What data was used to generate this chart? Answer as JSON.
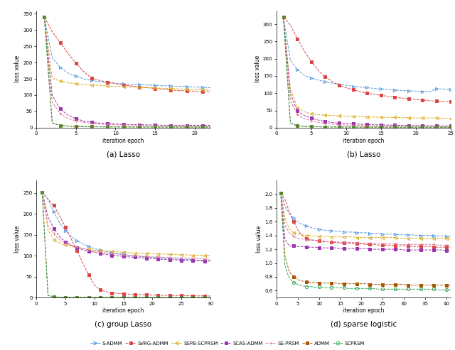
{
  "subplot_titles": [
    "(a) Lasso",
    "(b) Lasso",
    "(c) group Lasso",
    "(d) sparse logistic"
  ],
  "ylabel": "loss value",
  "xlabel": "iteration epoch",
  "methods": [
    "S-ADMM",
    "SVRG-ADMM",
    "SSPB-SCPRSM",
    "SCAS-ADMM",
    "SS-PRSM",
    "ADMM",
    "SCPRSM"
  ],
  "colors": [
    "#5599dd",
    "#dd4444",
    "#ddaa22",
    "#9933aa",
    "#dd7799",
    "#aa5500",
    "#33aa55"
  ],
  "markers": [
    ">",
    "s",
    "<",
    "s",
    "+",
    "s",
    "o"
  ],
  "plot_a": {
    "xlim": [
      0,
      22
    ],
    "ylim": [
      0,
      360
    ],
    "yticks": [
      0,
      50,
      100,
      150,
      200,
      250,
      300,
      350
    ],
    "xticks": [
      0,
      5,
      10,
      15,
      20
    ],
    "data": [
      [
        340,
        215,
        185,
        168,
        158,
        150,
        145,
        141,
        138,
        136,
        134,
        133,
        132,
        131,
        130,
        129,
        128,
        127,
        126,
        125,
        124,
        123
      ],
      [
        340,
        295,
        262,
        228,
        198,
        172,
        152,
        145,
        140,
        136,
        131,
        128,
        125,
        123,
        120,
        118,
        116,
        114,
        113,
        112,
        111,
        110
      ],
      [
        340,
        152,
        143,
        138,
        135,
        133,
        131,
        130,
        128,
        127,
        126,
        125,
        124,
        123,
        122,
        121,
        120,
        119,
        118,
        117,
        116,
        115
      ],
      [
        340,
        100,
        58,
        38,
        28,
        20,
        16,
        14,
        12,
        11,
        10,
        9.5,
        9,
        8.5,
        8,
        7.5,
        7,
        7,
        7,
        7,
        7,
        7
      ],
      [
        340,
        78,
        43,
        28,
        21,
        16,
        13,
        11,
        10,
        9,
        8.5,
        8,
        7.5,
        7,
        6.5,
        6,
        5.8,
        5.5,
        5.3,
        5.1,
        5,
        5
      ],
      [
        340,
        14,
        7,
        5,
        4,
        3.5,
        3,
        2.8,
        2.6,
        2.5,
        2.4,
        2.3,
        2.2,
        2.1,
        2.1,
        2,
        2,
        1.9,
        1.9,
        1.8,
        1.8,
        1.8
      ],
      [
        340,
        14,
        6.5,
        4.5,
        3.8,
        3.2,
        2.8,
        2.5,
        2.3,
        2.2,
        2.1,
        2,
        2,
        1.9,
        1.9,
        1.8,
        1.8,
        1.7,
        1.7,
        1.6,
        1.6,
        1.6
      ]
    ]
  },
  "plot_b": {
    "xlim": [
      0,
      25
    ],
    "ylim": [
      0,
      340
    ],
    "yticks": [
      0,
      50,
      100,
      150,
      200,
      250,
      300
    ],
    "xticks": [
      0,
      5,
      10,
      15,
      20,
      25
    ],
    "data": [
      [
        320,
        195,
        168,
        152,
        144,
        138,
        133,
        129,
        126,
        123,
        120,
        118,
        116,
        114,
        112,
        111,
        109,
        108,
        107,
        106,
        105,
        104,
        113,
        112,
        111,
        110
      ],
      [
        320,
        298,
        258,
        222,
        192,
        166,
        148,
        134,
        123,
        116,
        110,
        105,
        100,
        97,
        94,
        91,
        88,
        86,
        84,
        82,
        80,
        78,
        77,
        76,
        75,
        74
      ],
      [
        320,
        112,
        58,
        46,
        40,
        38,
        36,
        35,
        34,
        33,
        32,
        32,
        31,
        31,
        30,
        30,
        30,
        29,
        29,
        28,
        28,
        28,
        28,
        27,
        27,
        27
      ],
      [
        320,
        98,
        48,
        35,
        28,
        22,
        18,
        15,
        13,
        12,
        11,
        10,
        9,
        8.5,
        8,
        7.5,
        7,
        6.5,
        6.2,
        6,
        5.8,
        5.5,
        5.3,
        5.1,
        5,
        4.8
      ],
      [
        320,
        78,
        38,
        26,
        20,
        15,
        12,
        10,
        8.5,
        7.5,
        7,
        6.5,
        6,
        5.5,
        5.2,
        5,
        4.8,
        4.6,
        4.4,
        4.2,
        4,
        3.9,
        3.8,
        3.7,
        3.6,
        3.5
      ],
      [
        320,
        13,
        5.5,
        3.8,
        3.2,
        2.7,
        2.4,
        2.2,
        2.1,
        2,
        1.9,
        1.8,
        1.8,
        1.7,
        1.7,
        1.6,
        1.6,
        1.5,
        1.5,
        1.5,
        1.4,
        1.4,
        1.4,
        1.3,
        1.3,
        1.3
      ],
      [
        320,
        13,
        5.5,
        3.5,
        3,
        2.5,
        2.2,
        2,
        1.9,
        1.8,
        1.7,
        1.6,
        1.6,
        1.5,
        1.5,
        1.4,
        1.4,
        1.3,
        1.3,
        1.3,
        1.2,
        1.2,
        1.2,
        1.1,
        1.1,
        1.1
      ]
    ]
  },
  "plot_c": {
    "xlim": [
      0,
      30
    ],
    "ylim": [
      0,
      280
    ],
    "yticks": [
      0,
      50,
      100,
      150,
      200,
      250
    ],
    "xticks": [
      0,
      5,
      10,
      15,
      20,
      25,
      30
    ],
    "data": [
      [
        252,
        235,
        205,
        178,
        160,
        146,
        136,
        128,
        122,
        117,
        113,
        110,
        107,
        105,
        103,
        101,
        99,
        98,
        97,
        96,
        95,
        94,
        93,
        92,
        91,
        91,
        90,
        89,
        89,
        88,
        88
      ],
      [
        252,
        235,
        220,
        195,
        168,
        140,
        112,
        82,
        55,
        30,
        18,
        14,
        11,
        10,
        9,
        8,
        7.5,
        7,
        6.5,
        6,
        5.5,
        5.2,
        5,
        4.8,
        4.6,
        4.4,
        4.2,
        4,
        3.8,
        3.7,
        3.5
      ],
      [
        252,
        162,
        138,
        130,
        125,
        122,
        119,
        117,
        115,
        113,
        112,
        111,
        110,
        109,
        108,
        107,
        106,
        106,
        105,
        105,
        104,
        104,
        103,
        103,
        102,
        102,
        101,
        101,
        101,
        100,
        100
      ],
      [
        252,
        192,
        165,
        145,
        133,
        125,
        119,
        114,
        111,
        108,
        105,
        103,
        101,
        100,
        98,
        97,
        96,
        95,
        94,
        93,
        92,
        91,
        90,
        90,
        89,
        89,
        88,
        88,
        87,
        87,
        87
      ],
      [
        252,
        172,
        152,
        138,
        130,
        125,
        121,
        117,
        114,
        111,
        109,
        107,
        105,
        104,
        102,
        101,
        100,
        99,
        98,
        97,
        97,
        96,
        95,
        95,
        94,
        94,
        93,
        93,
        92,
        92,
        91
      ],
      [
        252,
        5,
        1.5,
        1,
        0.7,
        0.5,
        0.4,
        0.35,
        0.3,
        0.25,
        0.22,
        0.2,
        0.18,
        0.16,
        0.15,
        0.14,
        0.13,
        0.12,
        0.11,
        0.1,
        0.1,
        0.09,
        0.09,
        0.08,
        0.08,
        0.07,
        0.07,
        0.07,
        0.06,
        0.06,
        0.06
      ],
      [
        252,
        5,
        1.5,
        1,
        0.7,
        0.5,
        0.4,
        0.33,
        0.28,
        0.23,
        0.2,
        0.18,
        0.16,
        0.15,
        0.13,
        0.12,
        0.11,
        0.1,
        0.1,
        0.09,
        0.09,
        0.08,
        0.08,
        0.07,
        0.07,
        0.06,
        0.06,
        0.06,
        0.05,
        0.05,
        0.05
      ]
    ]
  },
  "plot_d": {
    "xlim": [
      0,
      41
    ],
    "ylim": [
      0.5,
      2.2
    ],
    "yticks": [
      0.6,
      0.8,
      1.0,
      1.2,
      1.4,
      1.6,
      1.8,
      2.0
    ],
    "xticks": [
      0,
      5,
      10,
      15,
      20,
      25,
      30,
      35,
      40
    ],
    "data": [
      [
        2.02,
        1.82,
        1.72,
        1.65,
        1.6,
        1.56,
        1.54,
        1.52,
        1.5,
        1.49,
        1.48,
        1.47,
        1.47,
        1.46,
        1.46,
        1.45,
        1.45,
        1.45,
        1.44,
        1.44,
        1.44,
        1.43,
        1.43,
        1.43,
        1.42,
        1.42,
        1.42,
        1.42,
        1.41,
        1.41,
        1.41,
        1.41,
        1.4,
        1.4,
        1.4,
        1.4,
        1.4,
        1.39,
        1.39,
        1.39,
        1.39
      ],
      [
        2.02,
        1.92,
        1.75,
        1.6,
        1.48,
        1.4,
        1.36,
        1.34,
        1.33,
        1.32,
        1.31,
        1.31,
        1.3,
        1.3,
        1.29,
        1.29,
        1.29,
        1.28,
        1.28,
        1.28,
        1.27,
        1.27,
        1.27,
        1.26,
        1.26,
        1.26,
        1.26,
        1.25,
        1.25,
        1.25,
        1.25,
        1.24,
        1.24,
        1.24,
        1.24,
        1.24,
        1.23,
        1.23,
        1.23,
        1.23,
        1.23
      ],
      [
        2.02,
        1.65,
        1.5,
        1.44,
        1.42,
        1.41,
        1.4,
        1.4,
        1.39,
        1.39,
        1.39,
        1.39,
        1.38,
        1.38,
        1.38,
        1.38,
        1.38,
        1.38,
        1.37,
        1.37,
        1.37,
        1.37,
        1.37,
        1.37,
        1.37,
        1.37,
        1.37,
        1.37,
        1.36,
        1.36,
        1.36,
        1.36,
        1.36,
        1.36,
        1.36,
        1.36,
        1.36,
        1.36,
        1.36,
        1.36,
        1.35
      ],
      [
        2.02,
        1.35,
        1.25,
        1.25,
        1.24,
        1.24,
        1.23,
        1.23,
        1.23,
        1.22,
        1.22,
        1.22,
        1.22,
        1.22,
        1.21,
        1.21,
        1.21,
        1.21,
        1.21,
        1.21,
        1.21,
        1.2,
        1.2,
        1.2,
        1.2,
        1.2,
        1.2,
        1.2,
        1.2,
        1.19,
        1.19,
        1.19,
        1.19,
        1.19,
        1.19,
        1.19,
        1.19,
        1.19,
        1.19,
        1.18,
        1.18
      ],
      [
        2.02,
        1.55,
        1.44,
        1.39,
        1.36,
        1.35,
        1.34,
        1.33,
        1.33,
        1.32,
        1.32,
        1.31,
        1.31,
        1.31,
        1.3,
        1.3,
        1.3,
        1.3,
        1.29,
        1.29,
        1.29,
        1.29,
        1.29,
        1.28,
        1.28,
        1.28,
        1.28,
        1.28,
        1.27,
        1.27,
        1.27,
        1.27,
        1.27,
        1.27,
        1.27,
        1.27,
        1.27,
        1.26,
        1.26,
        1.26,
        1.26
      ],
      [
        2.02,
        1.1,
        0.88,
        0.8,
        0.76,
        0.74,
        0.73,
        0.72,
        0.72,
        0.71,
        0.71,
        0.71,
        0.71,
        0.71,
        0.7,
        0.7,
        0.7,
        0.7,
        0.7,
        0.7,
        0.7,
        0.69,
        0.69,
        0.69,
        0.69,
        0.69,
        0.69,
        0.69,
        0.69,
        0.69,
        0.68,
        0.68,
        0.68,
        0.68,
        0.68,
        0.68,
        0.68,
        0.68,
        0.68,
        0.68,
        0.68
      ],
      [
        2.02,
        0.96,
        0.78,
        0.72,
        0.69,
        0.67,
        0.66,
        0.66,
        0.65,
        0.65,
        0.65,
        0.64,
        0.64,
        0.64,
        0.64,
        0.64,
        0.63,
        0.63,
        0.63,
        0.63,
        0.63,
        0.63,
        0.63,
        0.62,
        0.62,
        0.62,
        0.62,
        0.62,
        0.62,
        0.62,
        0.62,
        0.62,
        0.62,
        0.62,
        0.62,
        0.62,
        0.62,
        0.61,
        0.61,
        0.61,
        0.61
      ]
    ]
  },
  "legend_labels": [
    "S-ADMM",
    "SVRG-ADMM",
    "SSPB-SCPRSM",
    "SCAS-ADMM",
    "SS-PRSM",
    "ADMM",
    "SCPRSM"
  ],
  "legend_colors": [
    "#5599dd",
    "#dd4444",
    "#ddaa22",
    "#9933aa",
    "#dd7799",
    "#aa5500",
    "#33aa55"
  ],
  "legend_markers": [
    ">",
    "s",
    "<",
    "s",
    "+",
    "s",
    "o"
  ]
}
